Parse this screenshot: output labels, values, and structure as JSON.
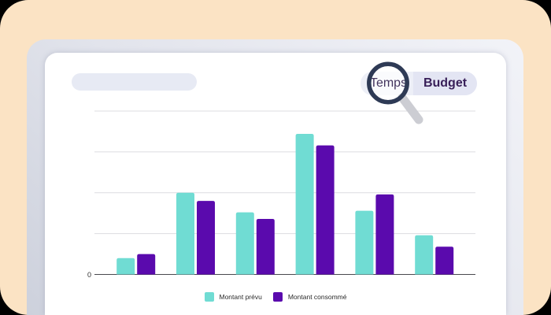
{
  "colors": {
    "background": "#FBE3C4",
    "card": "#ffffff",
    "skeleton_pill": "#E7EAF4",
    "toggle_inactive_bg": "#EDEFF7",
    "toggle_active_bg": "#E3E5F3",
    "toggle_inactive_text": "#43355E",
    "toggle_active_text": "#381F58",
    "magnifier_ring": "#2E3A55",
    "magnifier_handle": "#CCCDD3",
    "gridline": "#DCDCE0",
    "axis": "#4A4A4E"
  },
  "toggle": {
    "options": [
      {
        "label": "Temps",
        "active": false
      },
      {
        "label": "Budget",
        "active": true
      }
    ]
  },
  "chart_data": {
    "type": "bar",
    "categories": [
      "",
      "",
      "",
      "",
      "",
      ""
    ],
    "series": [
      {
        "name": "Montant prévu",
        "color": "#70DCD3",
        "values": [
          10,
          50,
          38,
          86,
          39,
          24
        ]
      },
      {
        "name": "Montant consommé",
        "color": "#5A0AAD",
        "values": [
          12.5,
          45,
          34,
          79,
          49,
          17
        ]
      }
    ],
    "title": "",
    "xlabel": "",
    "ylabel": "",
    "ylim": [
      0,
      100
    ],
    "yticks": [
      0,
      25,
      50,
      75,
      100
    ],
    "y_axis": {
      "zero_label": "0"
    },
    "grid": true,
    "legend_position": "bottom"
  }
}
